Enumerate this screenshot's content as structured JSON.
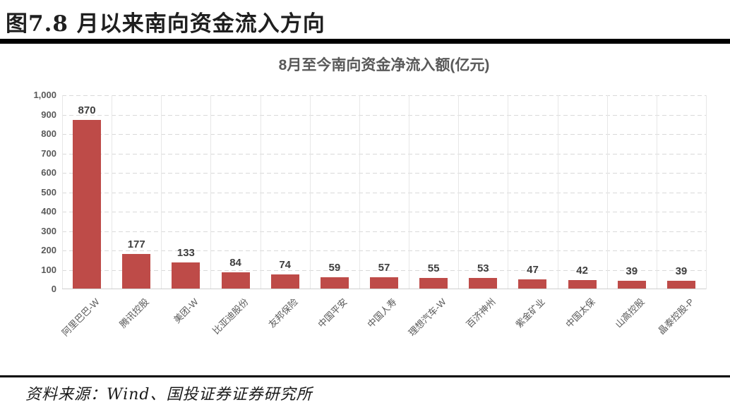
{
  "page": {
    "caption": "图7.8 月以来南向资金流入方向",
    "source": "资料来源：Wind、国投证券证券研究所"
  },
  "chart_data": {
    "type": "bar",
    "title": "8月至今南向资金净流入额(亿元)",
    "categories": [
      "阿里巴巴-W",
      "腾讯控股",
      "美团-W",
      "比亚迪股份",
      "友邦保险",
      "中国平安",
      "中国人寿",
      "理想汽车-W",
      "百济神州",
      "紫金矿业",
      "中国太保",
      "山高控股",
      "晶泰控股-P"
    ],
    "values": [
      870,
      177,
      133,
      84,
      74,
      59,
      57,
      55,
      53,
      47,
      42,
      39,
      39
    ],
    "xlabel": "",
    "ylabel": "",
    "ylim": [
      0,
      1000
    ],
    "ytick_step": 100,
    "yticks": [
      "1,000",
      "900",
      "800",
      "700",
      "600",
      "500",
      "400",
      "300",
      "200",
      "100",
      "0"
    ],
    "legend": "none",
    "grid": "horizontal-dashed",
    "bar_color": "#be4b48",
    "value_label_color": "#3f3f3f",
    "axis_label_color": "#595959"
  }
}
